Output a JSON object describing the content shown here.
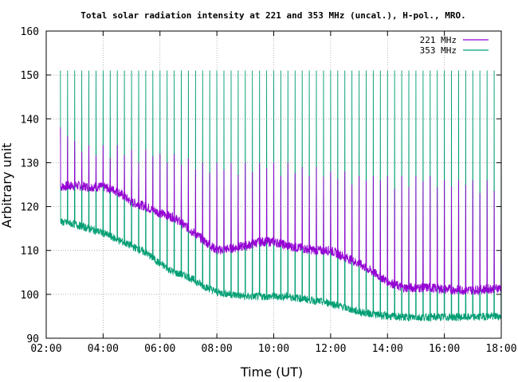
{
  "chart_data": {
    "type": "line",
    "title": "Total solar radiation intensity at 221 and 353 MHz (uncal.), H-pol., MRO.",
    "xlabel": "Time (UT)",
    "ylabel": "Arbitrary unit",
    "xlim": [
      "02:00",
      "18:00"
    ],
    "ylim": [
      90,
      160
    ],
    "x_ticks": [
      "02:00",
      "04:00",
      "06:00",
      "08:00",
      "10:00",
      "12:00",
      "14:00",
      "16:00",
      "18:00"
    ],
    "y_ticks": [
      "90",
      "100",
      "110",
      "120",
      "130",
      "140",
      "150",
      "160"
    ],
    "grid": true,
    "legend_position": "top-right",
    "spike_interval_minutes": 15,
    "series": [
      {
        "name": "221 MHz",
        "color": "#9400d3",
        "x": [
          "02:30",
          "03:00",
          "03:30",
          "04:00",
          "04:30",
          "05:00",
          "05:30",
          "06:00",
          "06:30",
          "07:00",
          "07:30",
          "08:00",
          "08:30",
          "09:00",
          "09:30",
          "10:00",
          "10:30",
          "11:00",
          "11:30",
          "12:00",
          "12:30",
          "13:00",
          "13:30",
          "14:00",
          "14:30",
          "15:00",
          "15:30",
          "16:00",
          "16:30",
          "17:00",
          "17:30",
          "18:00"
        ],
        "values": [
          124.5,
          124.8,
          124.5,
          124.5,
          123.5,
          121,
          120,
          118.5,
          117.5,
          115,
          112.5,
          110,
          110.5,
          111,
          112,
          112,
          111,
          110.5,
          110,
          110,
          108.5,
          107,
          105,
          103,
          101.5,
          101.5,
          101.5,
          101.2,
          101,
          101,
          101.2,
          101.5
        ],
        "spike_peaks": [
          138,
          135,
          134,
          134,
          134,
          133,
          133,
          132,
          132,
          131,
          130,
          130,
          130,
          130,
          130,
          130,
          130,
          129,
          129,
          128,
          128,
          127,
          127,
          127,
          127,
          127,
          127,
          126,
          126,
          126,
          126,
          126
        ]
      },
      {
        "name": "353 MHz",
        "color": "#009e73",
        "x": [
          "02:30",
          "03:00",
          "03:30",
          "04:00",
          "04:30",
          "05:00",
          "05:30",
          "06:00",
          "06:30",
          "07:00",
          "07:30",
          "08:00",
          "08:30",
          "09:00",
          "09:30",
          "10:00",
          "10:30",
          "11:00",
          "11:30",
          "12:00",
          "12:30",
          "13:00",
          "13:30",
          "14:00",
          "14:30",
          "15:00",
          "15:30",
          "16:00",
          "16:30",
          "17:00",
          "17:30",
          "18:00"
        ],
        "values": [
          116.5,
          116,
          115,
          114,
          112.5,
          111,
          109.5,
          107,
          105,
          104,
          102,
          100.5,
          100,
          99.5,
          99.5,
          99.5,
          99.5,
          99,
          98.5,
          98,
          97,
          96,
          95.5,
          95,
          94.8,
          94.8,
          94.8,
          94.8,
          94.8,
          94.8,
          95,
          95
        ],
        "spike_peaks": [
          151,
          151,
          151,
          151,
          151,
          151,
          151,
          151,
          151,
          151,
          151,
          151,
          151,
          151,
          151,
          151,
          151,
          151,
          151,
          151,
          151,
          151,
          151,
          151,
          151,
          151,
          151,
          151,
          151,
          151,
          151,
          151
        ]
      }
    ]
  }
}
